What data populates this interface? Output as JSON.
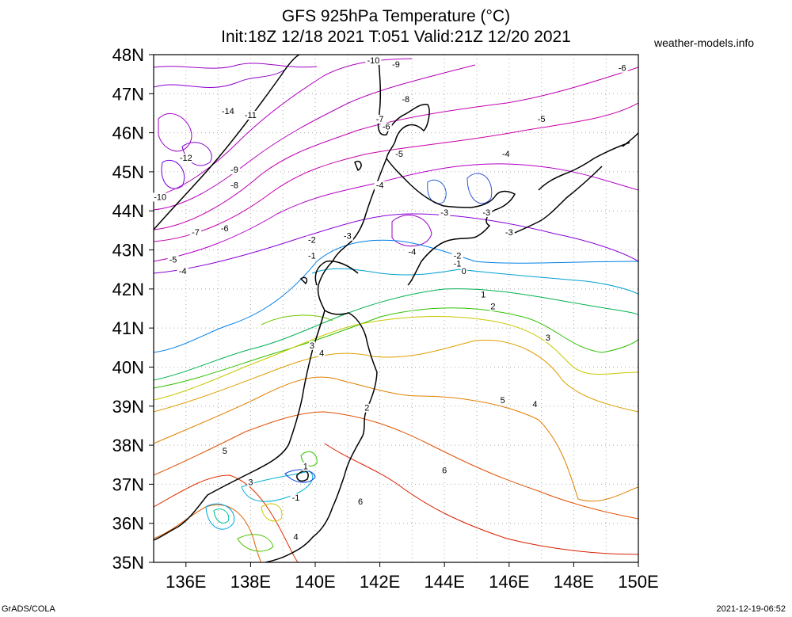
{
  "title_line1": "GFS 925hPa Temperature (°C)",
  "title_line2": "Init:18Z 12/18 2021 T:051 Valid:21Z 12/20 2021",
  "brand": "weather-models.info",
  "footer_left": "GrADS/COLA",
  "footer_right": "2021-12-19-06:52",
  "lat_labels": [
    "48N",
    "47N",
    "46N",
    "45N",
    "44N",
    "43N",
    "42N",
    "41N",
    "40N",
    "39N",
    "38N",
    "37N",
    "36N",
    "35N"
  ],
  "lon_labels": [
    "136E",
    "138E",
    "140E",
    "142E",
    "144E",
    "146E",
    "148E",
    "150E"
  ],
  "contour_labels": [
    {
      "text": "-10",
      "lon": 141.8,
      "lat": 47.8
    },
    {
      "text": "-9",
      "lon": 142.5,
      "lat": 47.7
    },
    {
      "text": "-6",
      "lon": 149.5,
      "lat": 47.6
    },
    {
      "text": "-8",
      "lon": 142.8,
      "lat": 46.8
    },
    {
      "text": "-14",
      "lon": 137.3,
      "lat": 46.5
    },
    {
      "text": "-11",
      "lon": 138.0,
      "lat": 46.4
    },
    {
      "text": "-7",
      "lon": 142.0,
      "lat": 46.3
    },
    {
      "text": "-6",
      "lon": 142.2,
      "lat": 46.1
    },
    {
      "text": "-5",
      "lon": 147.0,
      "lat": 46.3
    },
    {
      "text": "-12",
      "lon": 136.0,
      "lat": 45.3
    },
    {
      "text": "-9",
      "lon": 137.5,
      "lat": 45.0
    },
    {
      "text": "-8",
      "lon": 137.5,
      "lat": 44.6
    },
    {
      "text": "-5",
      "lon": 142.6,
      "lat": 45.4
    },
    {
      "text": "-4",
      "lon": 145.9,
      "lat": 45.4
    },
    {
      "text": "-10",
      "lon": 135.2,
      "lat": 44.3
    },
    {
      "text": "-4",
      "lon": 142.0,
      "lat": 44.6
    },
    {
      "text": "-3",
      "lon": 144.0,
      "lat": 43.9
    },
    {
      "text": "-3",
      "lon": 145.3,
      "lat": 43.9
    },
    {
      "text": "-7",
      "lon": 136.3,
      "lat": 43.4
    },
    {
      "text": "-6",
      "lon": 137.2,
      "lat": 43.5
    },
    {
      "text": "-3",
      "lon": 141.0,
      "lat": 43.3
    },
    {
      "text": "-3",
      "lon": 146.0,
      "lat": 43.4
    },
    {
      "text": "-2",
      "lon": 139.9,
      "lat": 43.2
    },
    {
      "text": "-5",
      "lon": 135.6,
      "lat": 42.7
    },
    {
      "text": "-1",
      "lon": 139.9,
      "lat": 42.8
    },
    {
      "text": "-4",
      "lon": 143.0,
      "lat": 42.9
    },
    {
      "text": "-2",
      "lon": 144.4,
      "lat": 42.8
    },
    {
      "text": "-4",
      "lon": 135.9,
      "lat": 42.4
    },
    {
      "text": "-1",
      "lon": 144.4,
      "lat": 42.6
    },
    {
      "text": "0",
      "lon": 144.6,
      "lat": 42.4
    },
    {
      "text": "1",
      "lon": 145.2,
      "lat": 41.8
    },
    {
      "text": "2",
      "lon": 145.5,
      "lat": 41.5
    },
    {
      "text": "3",
      "lon": 147.2,
      "lat": 40.7
    },
    {
      "text": "3",
      "lon": 139.9,
      "lat": 40.5
    },
    {
      "text": "4",
      "lon": 140.2,
      "lat": 40.3
    },
    {
      "text": "5",
      "lon": 145.8,
      "lat": 39.1
    },
    {
      "text": "4",
      "lon": 146.8,
      "lat": 39.0
    },
    {
      "text": "2",
      "lon": 141.6,
      "lat": 38.9
    },
    {
      "text": "5",
      "lon": 137.2,
      "lat": 37.8
    },
    {
      "text": "1",
      "lon": 139.7,
      "lat": 37.4
    },
    {
      "text": "6",
      "lon": 144.0,
      "lat": 37.3
    },
    {
      "text": "3",
      "lon": 138.0,
      "lat": 37.0
    },
    {
      "text": "-1",
      "lon": 139.4,
      "lat": 36.6
    },
    {
      "text": "6",
      "lon": 141.4,
      "lat": 36.5
    },
    {
      "text": "4",
      "lon": 139.4,
      "lat": 35.6
    }
  ]
}
